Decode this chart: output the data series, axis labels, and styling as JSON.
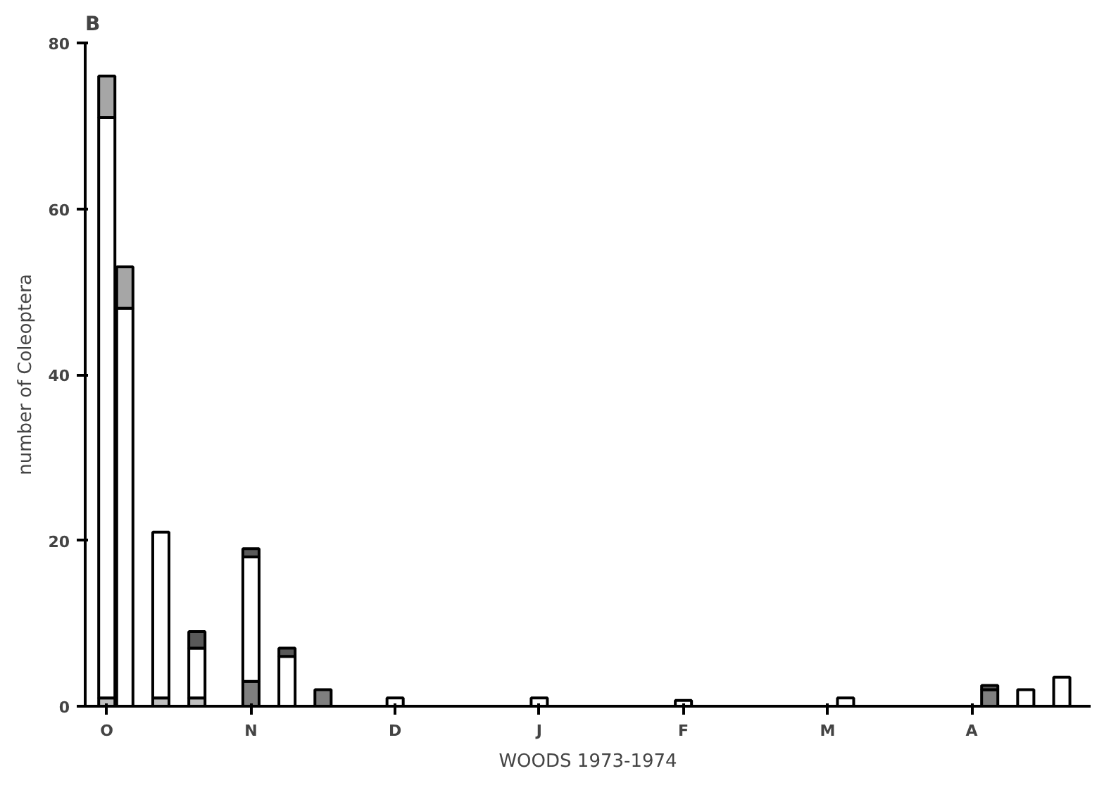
{
  "chart_data": {
    "type": "bar",
    "stacked": true,
    "title": "B",
    "xlabel": "WOODS 1973-1974",
    "ylabel": "number of Coleoptera",
    "categories": [
      "O",
      null,
      null,
      null,
      null,
      null,
      null,
      null,
      "N",
      null,
      null,
      null,
      null,
      null,
      null,
      null,
      "D",
      null,
      null,
      null,
      null,
      null,
      null,
      null,
      "J",
      null,
      null,
      null,
      null,
      null,
      null,
      null,
      "F",
      null,
      null,
      null,
      null,
      null,
      null,
      null,
      "M",
      null,
      null,
      null,
      null,
      null,
      null,
      null,
      "A",
      null,
      null,
      null,
      null,
      null
    ],
    "series": [
      {
        "color": "#7f7f7f",
        "values": [
          null,
          null,
          null,
          null,
          null,
          null,
          null,
          null,
          3,
          null,
          null,
          null,
          2,
          null,
          null,
          null,
          null,
          null,
          null,
          null,
          null,
          null,
          null,
          null,
          null,
          null,
          null,
          null,
          null,
          null,
          null,
          null,
          null,
          null,
          null,
          null,
          null,
          null,
          null,
          null,
          null,
          null,
          null,
          null,
          null,
          null,
          null,
          null,
          null,
          2,
          null,
          null,
          null,
          null
        ]
      },
      {
        "color": "#bfbfbf",
        "values": [
          1,
          null,
          null,
          1,
          null,
          1,
          null,
          null,
          null,
          null,
          null,
          null,
          null,
          null,
          null,
          null,
          null,
          null,
          null,
          null,
          null,
          null,
          null,
          null,
          null,
          null,
          null,
          null,
          null,
          null,
          null,
          null,
          null,
          null,
          null,
          null,
          null,
          null,
          null,
          null,
          null,
          null,
          null,
          null,
          null,
          null,
          null,
          null,
          null,
          null,
          null,
          null,
          null,
          null
        ]
      },
      {
        "color": "#ffffff",
        "values": [
          70,
          48,
          null,
          20,
          null,
          6,
          null,
          null,
          15,
          null,
          6,
          null,
          null,
          null,
          null,
          null,
          1,
          null,
          null,
          null,
          null,
          null,
          null,
          null,
          1,
          null,
          null,
          null,
          null,
          null,
          null,
          null,
          0.7,
          null,
          null,
          null,
          null,
          null,
          null,
          null,
          null,
          1,
          null,
          null,
          null,
          null,
          null,
          null,
          null,
          null,
          null,
          2,
          null,
          3.5
        ]
      },
      {
        "color": "#a6a6a6",
        "values": [
          5,
          5,
          null,
          null,
          null,
          null,
          null,
          null,
          null,
          null,
          null,
          null,
          null,
          null,
          null,
          null,
          null,
          null,
          null,
          null,
          null,
          null,
          null,
          null,
          null,
          null,
          null,
          null,
          null,
          null,
          null,
          null,
          null,
          null,
          null,
          null,
          null,
          null,
          null,
          null,
          null,
          null,
          null,
          null,
          null,
          null,
          null,
          null,
          null,
          null,
          null,
          null,
          null,
          null
        ]
      },
      {
        "color": "#595959",
        "values": [
          null,
          null,
          null,
          null,
          null,
          2,
          null,
          null,
          1,
          null,
          1,
          null,
          null,
          null,
          null,
          null,
          null,
          null,
          null,
          null,
          null,
          null,
          null,
          null,
          null,
          null,
          null,
          null,
          null,
          null,
          null,
          null,
          null,
          null,
          null,
          null,
          null,
          null,
          null,
          null,
          null,
          null,
          null,
          null,
          null,
          null,
          null,
          null,
          null,
          0.5,
          null,
          null,
          null,
          null
        ]
      }
    ],
    "ylim": [
      0,
      80
    ],
    "yticks": [
      0,
      20,
      40,
      60,
      80
    ],
    "grid": false
  }
}
